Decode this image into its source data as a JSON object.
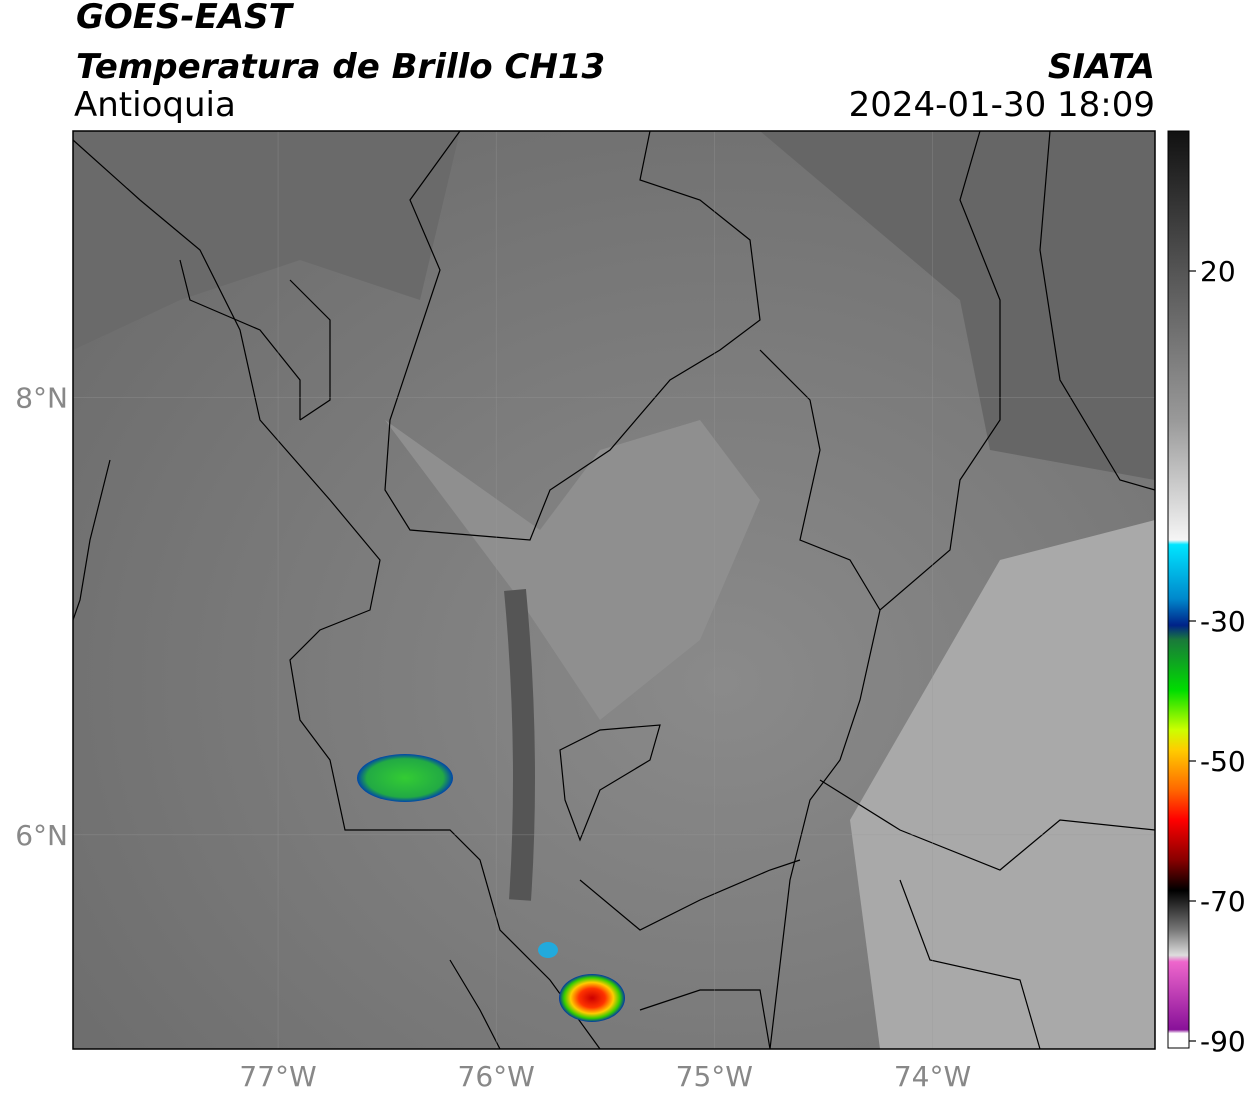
{
  "header": {
    "title": "GOES-EAST",
    "subtitle": "Temperatura de Brillo CH13",
    "region": "Antioquia",
    "source": "SIATA",
    "datetime": "2024-01-30 18:09"
  },
  "map": {
    "xlim": [
      -77.94,
      -72.98
    ],
    "ylim": [
      5.02,
      9.22
    ],
    "xticks": [
      {
        "value": -77,
        "label": "77°W"
      },
      {
        "value": -76,
        "label": "76°W"
      },
      {
        "value": -75,
        "label": "75°W"
      },
      {
        "value": -74,
        "label": "74°W"
      }
    ],
    "yticks": [
      {
        "value": 8,
        "label": "8°N"
      },
      {
        "value": 6,
        "label": "6°N"
      }
    ],
    "grid": true
  },
  "colorbar": {
    "lim": [
      -91,
      40
    ],
    "ticks": [
      20,
      -30,
      -50,
      -70,
      -90
    ]
  }
}
